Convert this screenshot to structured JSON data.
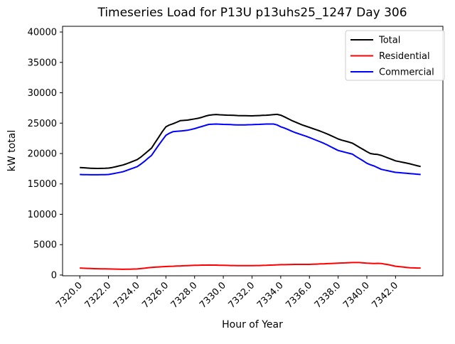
{
  "chart_data": {
    "type": "line",
    "title": "Timeseries Load for P13U p13uhs25_1247  Day 306",
    "xlabel": "Hour of Year",
    "ylabel": "kW total",
    "xlim": [
      7318.8,
      7345.3
    ],
    "ylim": [
      -120,
      40940
    ],
    "grid": false,
    "legend_position": "upper right",
    "x_tick_labels": [
      "7320.0",
      "7322.0",
      "7324.0",
      "7326.0",
      "7328.0",
      "7330.0",
      "7332.0",
      "7334.0",
      "7336.0",
      "7338.0",
      "7340.0",
      "7342.0"
    ],
    "x_tick_values": [
      7320,
      7322,
      7324,
      7326,
      7328,
      7330,
      7332,
      7334,
      7336,
      7338,
      7340,
      7342
    ],
    "y_tick_values": [
      0,
      5000,
      10000,
      15000,
      20000,
      25000,
      30000,
      35000,
      40000
    ],
    "y_tick_labels": [
      "0",
      "5000",
      "10000",
      "15000",
      "20000",
      "25000",
      "30000",
      "35000",
      "40000"
    ],
    "x": [
      7320.0,
      7320.25,
      7320.5,
      7320.75,
      7321.0,
      7321.25,
      7321.5,
      7321.75,
      7322.0,
      7322.25,
      7322.5,
      7322.75,
      7323.0,
      7323.25,
      7323.5,
      7323.75,
      7324.0,
      7324.25,
      7324.5,
      7324.75,
      7325.0,
      7325.25,
      7325.5,
      7325.75,
      7326.0,
      7326.25,
      7326.5,
      7326.75,
      7327.0,
      7327.25,
      7327.5,
      7327.75,
      7328.0,
      7328.25,
      7328.5,
      7328.75,
      7329.0,
      7329.25,
      7329.5,
      7329.75,
      7330.0,
      7330.25,
      7330.5,
      7330.75,
      7331.0,
      7331.25,
      7331.5,
      7331.75,
      7332.0,
      7332.25,
      7332.5,
      7332.75,
      7333.0,
      7333.25,
      7333.5,
      7333.75,
      7334.0,
      7334.25,
      7334.5,
      7334.75,
      7335.0,
      7335.25,
      7335.5,
      7335.75,
      7336.0,
      7336.25,
      7336.5,
      7336.75,
      7337.0,
      7337.25,
      7337.5,
      7337.75,
      7338.0,
      7338.25,
      7338.5,
      7338.75,
      7339.0,
      7339.25,
      7339.5,
      7339.75,
      7340.0,
      7340.25,
      7340.5,
      7340.75,
      7341.0,
      7341.25,
      7341.5,
      7341.75,
      7342.0,
      7342.25,
      7342.5,
      7342.75,
      7343.0,
      7343.25,
      7343.5,
      7343.75
    ],
    "series": [
      {
        "name": "Total",
        "color": "#000000",
        "values": [
          17700,
          17660,
          17620,
          17580,
          17550,
          17540,
          17550,
          17570,
          17600,
          17700,
          17830,
          17960,
          18100,
          18300,
          18530,
          18760,
          19000,
          19400,
          19900,
          20400,
          20900,
          21800,
          22700,
          23600,
          24400,
          24700,
          24900,
          25150,
          25400,
          25450,
          25500,
          25600,
          25700,
          25800,
          25950,
          26150,
          26300,
          26380,
          26420,
          26380,
          26350,
          26320,
          26300,
          26280,
          26250,
          26230,
          26220,
          26210,
          26200,
          26220,
          26250,
          26280,
          26300,
          26350,
          26400,
          26450,
          26300,
          26050,
          25750,
          25450,
          25200,
          24950,
          24700,
          24500,
          24300,
          24100,
          23900,
          23680,
          23450,
          23200,
          22950,
          22680,
          22400,
          22200,
          22050,
          21880,
          21700,
          21350,
          21000,
          20650,
          20300,
          20000,
          19900,
          19850,
          19700,
          19480,
          19250,
          19030,
          18800,
          18680,
          18550,
          18430,
          18300,
          18150,
          18000,
          17860
        ]
      },
      {
        "name": "Residential",
        "color": "#ff0000",
        "values": [
          1150,
          1120,
          1100,
          1070,
          1050,
          1040,
          1030,
          1010,
          1000,
          990,
          980,
          960,
          950,
          960,
          970,
          990,
          1000,
          1060,
          1120,
          1190,
          1250,
          1290,
          1330,
          1360,
          1400,
          1430,
          1450,
          1480,
          1500,
          1530,
          1550,
          1580,
          1600,
          1610,
          1630,
          1640,
          1650,
          1640,
          1630,
          1610,
          1600,
          1590,
          1570,
          1560,
          1550,
          1550,
          1550,
          1550,
          1550,
          1560,
          1570,
          1590,
          1600,
          1630,
          1650,
          1680,
          1700,
          1710,
          1730,
          1740,
          1750,
          1750,
          1750,
          1750,
          1750,
          1780,
          1800,
          1830,
          1850,
          1880,
          1900,
          1930,
          1950,
          1980,
          2000,
          2030,
          2050,
          2060,
          2050,
          2000,
          1950,
          1930,
          1900,
          1930,
          1900,
          1800,
          1700,
          1580,
          1450,
          1390,
          1330,
          1260,
          1200,
          1180,
          1160,
          1150
        ]
      },
      {
        "name": "Commercial",
        "color": "#0000ff",
        "values": [
          16550,
          16530,
          16510,
          16500,
          16500,
          16500,
          16510,
          16530,
          16550,
          16650,
          16760,
          16880,
          17000,
          17200,
          17410,
          17630,
          17850,
          18250,
          18700,
          19200,
          19700,
          20550,
          21400,
          22200,
          23000,
          23350,
          23600,
          23650,
          23700,
          23750,
          23820,
          23960,
          24100,
          24280,
          24450,
          24630,
          24800,
          24830,
          24850,
          24830,
          24800,
          24780,
          24760,
          24730,
          24700,
          24710,
          24720,
          24740,
          24750,
          24780,
          24800,
          24830,
          24850,
          24860,
          24850,
          24700,
          24400,
          24200,
          23950,
          23700,
          23450,
          23250,
          23050,
          22850,
          22650,
          22400,
          22170,
          21930,
          21680,
          21400,
          21100,
          20800,
          20500,
          20350,
          20200,
          20050,
          19900,
          19500,
          19150,
          18780,
          18400,
          18150,
          17950,
          17680,
          17400,
          17270,
          17150,
          17020,
          16900,
          16850,
          16800,
          16750,
          16700,
          16650,
          16600,
          16550
        ]
      }
    ],
    "legend": [
      {
        "label": "Total",
        "color": "#000000"
      },
      {
        "label": "Residential",
        "color": "#ff0000"
      },
      {
        "label": "Commercial",
        "color": "#0000ff"
      }
    ]
  }
}
